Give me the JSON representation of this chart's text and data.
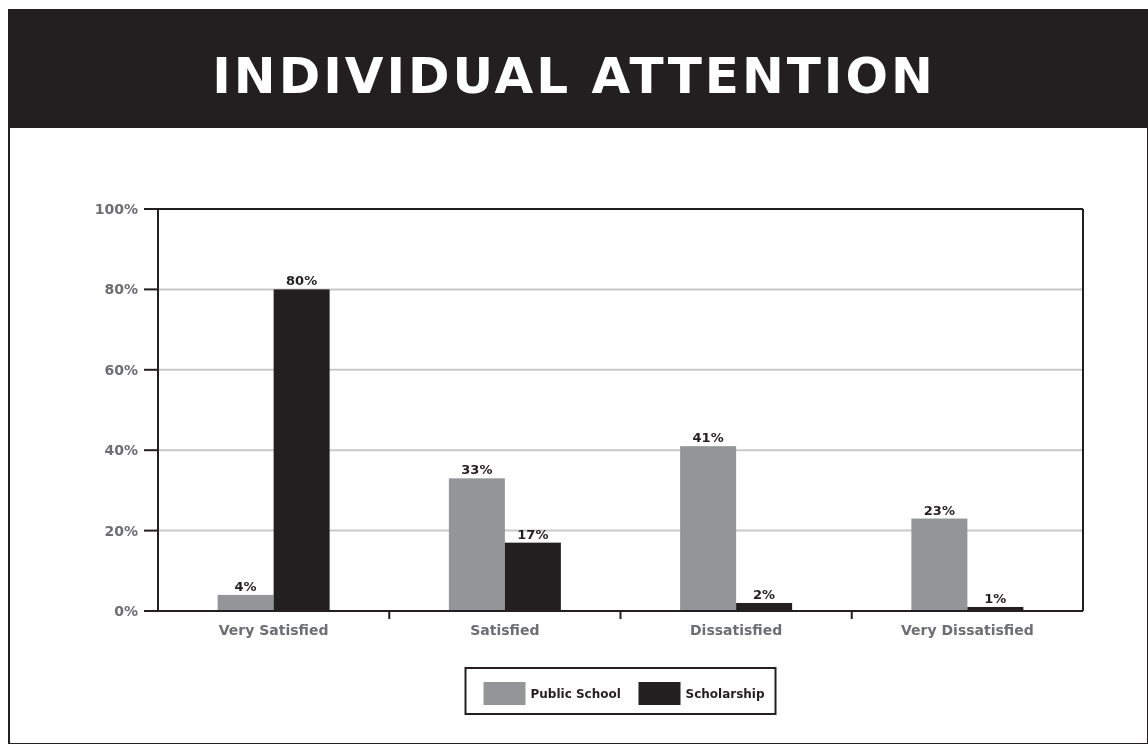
{
  "chart_data": {
    "type": "bar",
    "title": "INDIVIDUAL ATTENTION",
    "categories": [
      "Very Satisfied",
      "Satisfied",
      "Dissatisfied",
      "Very Dissatisfied"
    ],
    "series": [
      {
        "name": "Public School",
        "color": "#939598",
        "values": [
          4,
          33,
          41,
          23
        ],
        "value_labels": [
          "4%",
          "33%",
          "41%",
          "23%"
        ]
      },
      {
        "name": "Scholarship",
        "color": "#231f20",
        "values": [
          80,
          17,
          2,
          1
        ],
        "value_labels": [
          "80%",
          "17%",
          "2%",
          "1%"
        ]
      }
    ],
    "ylim": [
      0,
      100
    ],
    "yticks": [
      {
        "value": 0,
        "label": "0%"
      },
      {
        "value": 20,
        "label": "20%"
      },
      {
        "value": 40,
        "label": "40%"
      },
      {
        "value": 60,
        "label": "60%"
      },
      {
        "value": 80,
        "label": "80%"
      },
      {
        "value": 100,
        "label": "100%"
      }
    ],
    "grid": "y",
    "legend": "bottom"
  }
}
